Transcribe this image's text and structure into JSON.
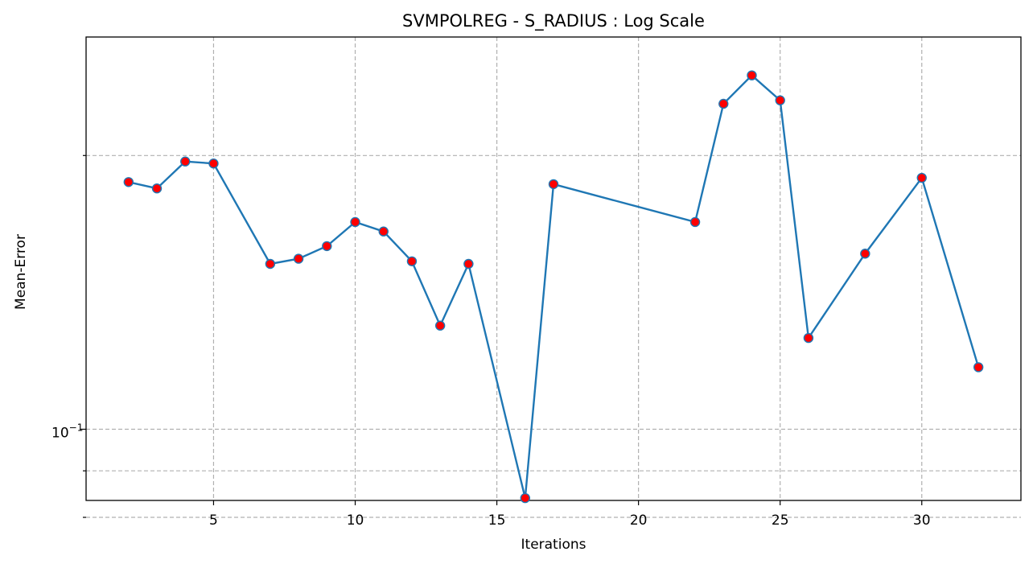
{
  "chart_data": {
    "type": "line",
    "title": "SVMPOLREG - S_RADIUS : Log Scale",
    "xlabel": "Iterations",
    "ylabel": "Mean-Error",
    "yscale": "log",
    "xlim": [
      0.5,
      33.5
    ],
    "ylim": [
      0.0835,
      0.27
    ],
    "x_ticks": [
      5,
      10,
      15,
      20,
      25,
      30
    ],
    "y_major_ticks": [
      {
        "value": 0.1,
        "label": "10",
        "label_exp": "−1"
      }
    ],
    "y_minor_ticks": [
      0.08,
      0.09,
      0.2,
      0.3,
      0.4,
      0.5
    ],
    "grid": true,
    "line_color": "#1f77b4",
    "marker_face_color": "#ff0000",
    "series": [
      {
        "x": [
          2,
          3,
          4,
          5,
          7,
          8,
          9,
          10,
          11,
          12,
          13,
          14,
          16,
          17,
          22,
          23,
          24,
          25,
          26,
          28,
          30,
          32
        ],
        "y": [
          0.187,
          0.184,
          0.197,
          0.196,
          0.152,
          0.154,
          0.159,
          0.169,
          0.165,
          0.153,
          0.13,
          0.152,
          0.084,
          0.186,
          0.169,
          0.228,
          0.245,
          0.23,
          0.126,
          0.156,
          0.189,
          0.117
        ]
      }
    ]
  }
}
